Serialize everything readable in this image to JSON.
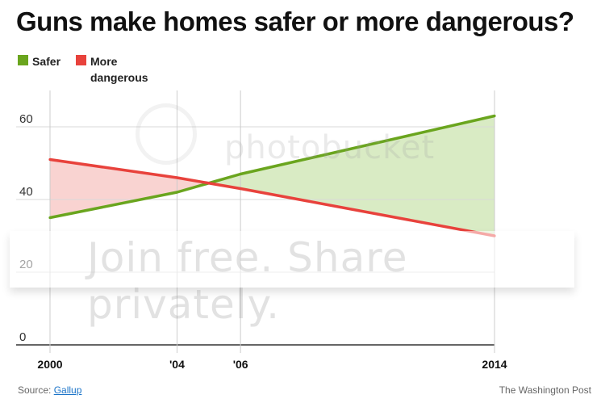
{
  "title": "Guns make homes safer or more dangerous?",
  "legend": [
    {
      "label": "Safer",
      "color": "#6aa51e"
    },
    {
      "label": "More dangerous",
      "color": "#e8423c"
    }
  ],
  "source": {
    "prefix": "Source:",
    "link": "Gallup"
  },
  "credit": "The Washington Post",
  "watermark": {
    "top": "photobucket",
    "band": "Join free. Share privately."
  },
  "chart_data": {
    "type": "line",
    "title": "Guns make homes safer or more dangerous?",
    "x": [
      2000,
      2004,
      2006,
      2014
    ],
    "x_tick_labels": [
      "2000",
      "'04",
      "'06",
      "2014"
    ],
    "series": [
      {
        "name": "Safer",
        "color": "#6aa51e",
        "values": [
          35,
          42,
          47,
          63
        ]
      },
      {
        "name": "More dangerous",
        "color": "#e8423c",
        "values": [
          51,
          46,
          43,
          30
        ]
      }
    ],
    "shading": {
      "safer_higher": "#d9ebc4",
      "dangerous_higher": "#f9d3d1"
    },
    "y_ticks": [
      0,
      20,
      40,
      60
    ],
    "xlim": [
      2000,
      2014
    ],
    "ylim": [
      0,
      70
    ],
    "grid": true,
    "legend_position": "top-left"
  }
}
